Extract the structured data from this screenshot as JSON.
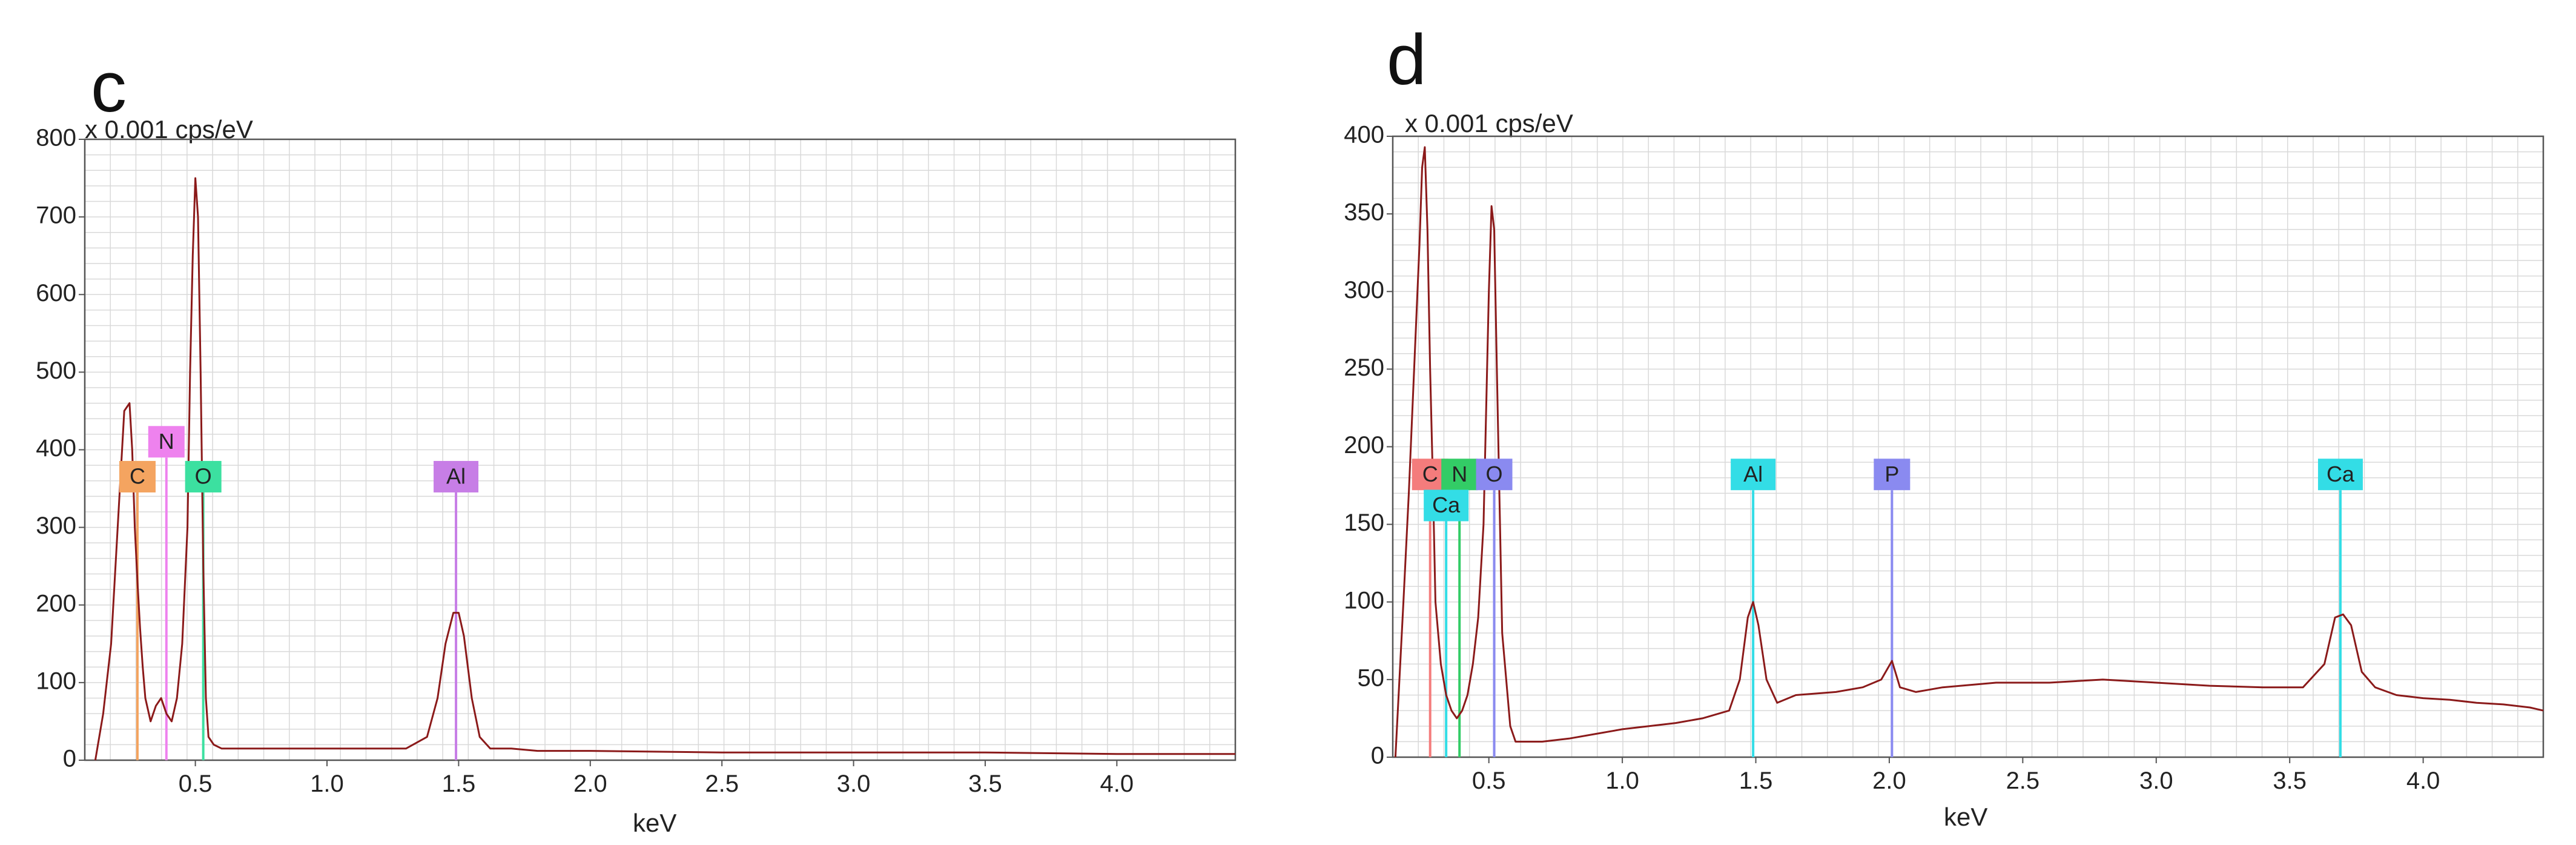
{
  "chart_data": [
    {
      "panel": "c",
      "type": "line",
      "unit_label": "x 0.001 cps/eV",
      "xlabel": "keV",
      "xlim": [
        0.08,
        4.45
      ],
      "ylim": [
        0,
        800
      ],
      "x_ticks": [
        0.5,
        1.0,
        1.5,
        2.0,
        2.5,
        3.0,
        3.5,
        4.0
      ],
      "x_tick_labels": [
        "0.5",
        "1.0",
        "1.5",
        "2.0",
        "2.5",
        "3.0",
        "3.5",
        "4.0"
      ],
      "y_ticks": [
        0,
        100,
        200,
        300,
        400,
        500,
        600,
        700,
        800
      ],
      "y_tick_labels": [
        "0",
        "100",
        "200",
        "300",
        "400",
        "500",
        "600",
        "700",
        "800"
      ],
      "grid": true,
      "line_color": "#8b1a1a",
      "spectrum": {
        "x": [
          0.12,
          0.15,
          0.18,
          0.21,
          0.23,
          0.25,
          0.26,
          0.27,
          0.28,
          0.29,
          0.3,
          0.31,
          0.33,
          0.35,
          0.37,
          0.39,
          0.41,
          0.43,
          0.45,
          0.47,
          0.48,
          0.49,
          0.5,
          0.51,
          0.52,
          0.53,
          0.54,
          0.55,
          0.57,
          0.6,
          0.7,
          0.8,
          0.9,
          1.0,
          1.1,
          1.2,
          1.3,
          1.38,
          1.42,
          1.45,
          1.48,
          1.5,
          1.52,
          1.55,
          1.58,
          1.62,
          1.7,
          1.8,
          2.0,
          2.5,
          3.0,
          3.5,
          4.0,
          4.45
        ],
        "y": [
          0,
          60,
          150,
          330,
          450,
          460,
          400,
          300,
          230,
          170,
          120,
          80,
          50,
          70,
          80,
          60,
          50,
          80,
          150,
          300,
          500,
          650,
          750,
          700,
          500,
          250,
          80,
          30,
          20,
          15,
          15,
          15,
          15,
          15,
          15,
          15,
          15,
          30,
          80,
          150,
          190,
          190,
          160,
          80,
          30,
          15,
          15,
          12,
          12,
          10,
          10,
          10,
          8,
          8
        ]
      },
      "peaks": [
        {
          "label": "C",
          "x": 0.28,
          "label_y": 345,
          "color": "#f4a460"
        },
        {
          "label": "N",
          "x": 0.39,
          "label_y": 390,
          "color": "#ee82ee"
        },
        {
          "label": "O",
          "x": 0.53,
          "label_y": 345,
          "color": "#3ce0a0"
        },
        {
          "label": "Al",
          "x": 1.49,
          "label_y": 345,
          "color": "#c77ee6"
        }
      ]
    },
    {
      "panel": "d",
      "type": "line",
      "unit_label": "x 0.001 cps/eV",
      "xlabel": "keV",
      "xlim": [
        0.14,
        4.45
      ],
      "ylim": [
        0,
        400
      ],
      "x_ticks": [
        0.5,
        1.0,
        1.5,
        2.0,
        2.5,
        3.0,
        3.5,
        4.0
      ],
      "x_tick_labels": [
        "0.5",
        "1.0",
        "1.5",
        "2.0",
        "2.5",
        "3.0",
        "3.5",
        "4.0"
      ],
      "y_ticks": [
        0,
        50,
        100,
        150,
        200,
        250,
        300,
        350,
        400
      ],
      "y_tick_labels": [
        "0",
        "50",
        "100",
        "150",
        "200",
        "250",
        "300",
        "350",
        "400"
      ],
      "grid": true,
      "line_color": "#8b1a1a",
      "spectrum": {
        "x": [
          0.15,
          0.18,
          0.2,
          0.22,
          0.24,
          0.25,
          0.26,
          0.27,
          0.28,
          0.29,
          0.3,
          0.32,
          0.34,
          0.36,
          0.38,
          0.4,
          0.42,
          0.44,
          0.46,
          0.48,
          0.5,
          0.51,
          0.52,
          0.53,
          0.55,
          0.58,
          0.6,
          0.7,
          0.8,
          0.9,
          1.0,
          1.1,
          1.2,
          1.3,
          1.4,
          1.44,
          1.47,
          1.49,
          1.51,
          1.54,
          1.58,
          1.65,
          1.8,
          1.9,
          1.97,
          2.01,
          2.04,
          2.1,
          2.2,
          2.4,
          2.6,
          2.8,
          3.0,
          3.2,
          3.4,
          3.55,
          3.63,
          3.67,
          3.7,
          3.73,
          3.77,
          3.82,
          3.9,
          4.0,
          4.1,
          4.2,
          4.3,
          4.4,
          4.45
        ],
        "y": [
          0,
          100,
          170,
          250,
          330,
          380,
          393,
          340,
          250,
          180,
          100,
          60,
          40,
          30,
          25,
          30,
          40,
          60,
          90,
          150,
          300,
          355,
          340,
          250,
          80,
          20,
          10,
          10,
          12,
          15,
          18,
          20,
          22,
          25,
          30,
          50,
          90,
          100,
          85,
          50,
          35,
          40,
          42,
          45,
          50,
          62,
          45,
          42,
          45,
          48,
          48,
          50,
          48,
          46,
          45,
          45,
          60,
          90,
          92,
          85,
          55,
          45,
          40,
          38,
          37,
          35,
          34,
          32,
          30
        ]
      },
      "peaks": [
        {
          "label": "C",
          "x": 0.28,
          "label_y": 172,
          "color": "#f47c7c"
        },
        {
          "label": "N",
          "x": 0.39,
          "label_y": 172,
          "color": "#33cc66"
        },
        {
          "label": "O",
          "x": 0.52,
          "label_y": 172,
          "color": "#8a8af0"
        },
        {
          "label": "Ca",
          "x": 0.34,
          "label_y": 152,
          "color": "#33dde6"
        },
        {
          "label": "Al",
          "x": 1.49,
          "label_y": 172,
          "color": "#33dde6"
        },
        {
          "label": "P",
          "x": 2.01,
          "label_y": 172,
          "color": "#8a8af0"
        },
        {
          "label": "Ca",
          "x": 3.69,
          "label_y": 172,
          "color": "#33dde6"
        }
      ]
    }
  ]
}
